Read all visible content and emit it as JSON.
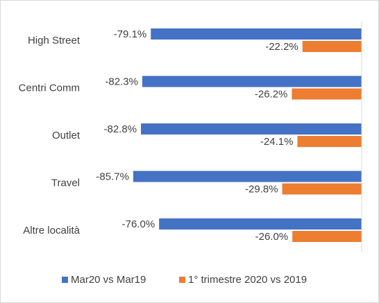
{
  "chart_data": {
    "type": "bar",
    "orientation": "horizontal",
    "categories": [
      "High Street",
      "Centri Comm",
      "Outlet",
      "Travel",
      "Altre località"
    ],
    "series": [
      {
        "name": "Mar20 vs Mar19",
        "color": "#4472C4",
        "values": [
          -79.1,
          -82.3,
          -82.8,
          -85.7,
          -76.0
        ],
        "labels": [
          "-79.1%",
          "-82.3%",
          "-82.8%",
          "-85.7%",
          "-76.0%"
        ]
      },
      {
        "name": "1° trimestre 2020 vs 2019",
        "color": "#ED7D31",
        "values": [
          -22.2,
          -26.2,
          -24.1,
          -29.8,
          -26.0
        ],
        "labels": [
          "-22.2%",
          "-26.2%",
          "-24.1%",
          "-29.8%",
          "-26.0%"
        ]
      }
    ],
    "title": "",
    "xlabel": "",
    "ylabel": "",
    "xlim": [
      -100,
      0
    ],
    "grid": false,
    "legend_position": "bottom",
    "unit": "%"
  }
}
